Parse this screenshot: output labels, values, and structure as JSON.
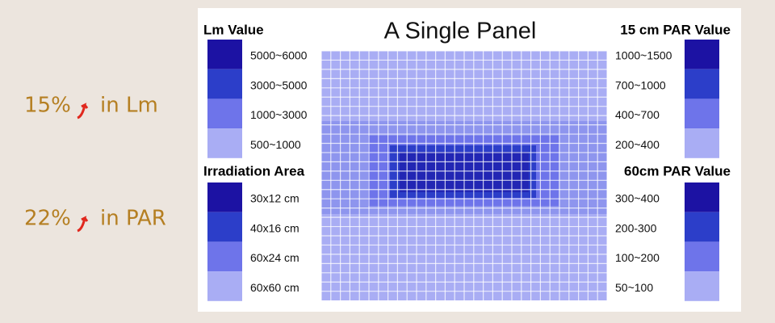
{
  "side_notes": [
    {
      "value": "15%",
      "text": "in Lm"
    },
    {
      "value": "22%",
      "text": "in PAR"
    }
  ],
  "title": "A Single Panel",
  "legends": [
    {
      "title": "Lm Value",
      "items": [
        {
          "label": "5000~6000",
          "color": "#1c12a3"
        },
        {
          "label": "3000~5000",
          "color": "#2c3ec9"
        },
        {
          "label": "1000~3000",
          "color": "#6e74ea"
        },
        {
          "label": "500~1000",
          "color": "#a9adf4"
        }
      ]
    },
    {
      "title": "Irradiation Area",
      "items": [
        {
          "label": "30x12 cm",
          "color": "#1c12a3"
        },
        {
          "label": "40x16 cm",
          "color": "#2c3ec9"
        },
        {
          "label": "60x24 cm",
          "color": "#6e74ea"
        },
        {
          "label": "60x60 cm",
          "color": "#a9adf4"
        }
      ]
    },
    {
      "title": "15 cm PAR Value",
      "items": [
        {
          "label": "1000~1500",
          "color": "#1c12a3"
        },
        {
          "label": "700~1000",
          "color": "#2c3ec9"
        },
        {
          "label": "400~700",
          "color": "#6e74ea"
        },
        {
          "label": "200~400",
          "color": "#a9adf4"
        }
      ]
    },
    {
      "title": "60cm PAR Value",
      "items": [
        {
          "label": "300~400",
          "color": "#1c12a3"
        },
        {
          "label": "200-300",
          "color": "#2c3ec9"
        },
        {
          "label": "100~200",
          "color": "#6e74ea"
        },
        {
          "label": "50~100",
          "color": "#a9adf4"
        }
      ]
    }
  ]
}
